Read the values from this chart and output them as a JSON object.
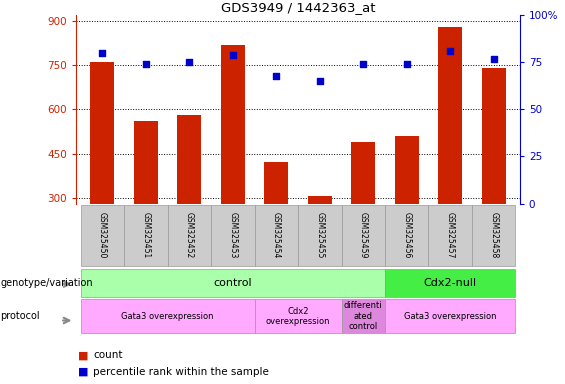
{
  "title": "GDS3949 / 1442363_at",
  "samples": [
    "GSM325450",
    "GSM325451",
    "GSM325452",
    "GSM325453",
    "GSM325454",
    "GSM325455",
    "GSM325459",
    "GSM325456",
    "GSM325457",
    "GSM325458"
  ],
  "counts": [
    760,
    560,
    580,
    820,
    420,
    305,
    490,
    510,
    880,
    740
  ],
  "percentile": [
    80,
    74,
    75,
    79,
    68,
    65,
    74,
    74,
    81,
    77
  ],
  "ylim_left": [
    280,
    920
  ],
  "ylim_right": [
    0,
    100
  ],
  "yticks_left": [
    300,
    450,
    600,
    750,
    900
  ],
  "yticks_right": [
    0,
    25,
    50,
    75,
    100
  ],
  "bar_color": "#cc2200",
  "dot_color": "#0000cc",
  "grid_color": "#000000",
  "bar_width": 0.55,
  "genotype_control_color": "#aaffaa",
  "genotype_cdx2_color": "#44ee44",
  "protocol_gata3_color": "#ffaaff",
  "protocol_diff_color": "#ee99ee",
  "label_left_color": "#888888",
  "genotype_labels": [
    {
      "text": "control",
      "start": 0,
      "end": 6,
      "color": "#aaffaa"
    },
    {
      "text": "Cdx2-null",
      "start": 7,
      "end": 9,
      "color": "#44ee44"
    }
  ],
  "protocol_labels": [
    {
      "text": "Gata3 overexpression",
      "start": 0,
      "end": 3,
      "color": "#ffaaff"
    },
    {
      "text": "Cdx2\noverexpression",
      "start": 4,
      "end": 5,
      "color": "#ffaaff"
    },
    {
      "text": "differenti\nated\ncontrol",
      "start": 6,
      "end": 6,
      "color": "#dd88dd"
    },
    {
      "text": "Gata3 overexpression",
      "start": 7,
      "end": 9,
      "color": "#ffaaff"
    }
  ],
  "legend_count_color": "#cc2200",
  "legend_dot_color": "#0000cc",
  "tick_bg_color": "#cccccc",
  "right_ytick_suffix_100": "100%"
}
